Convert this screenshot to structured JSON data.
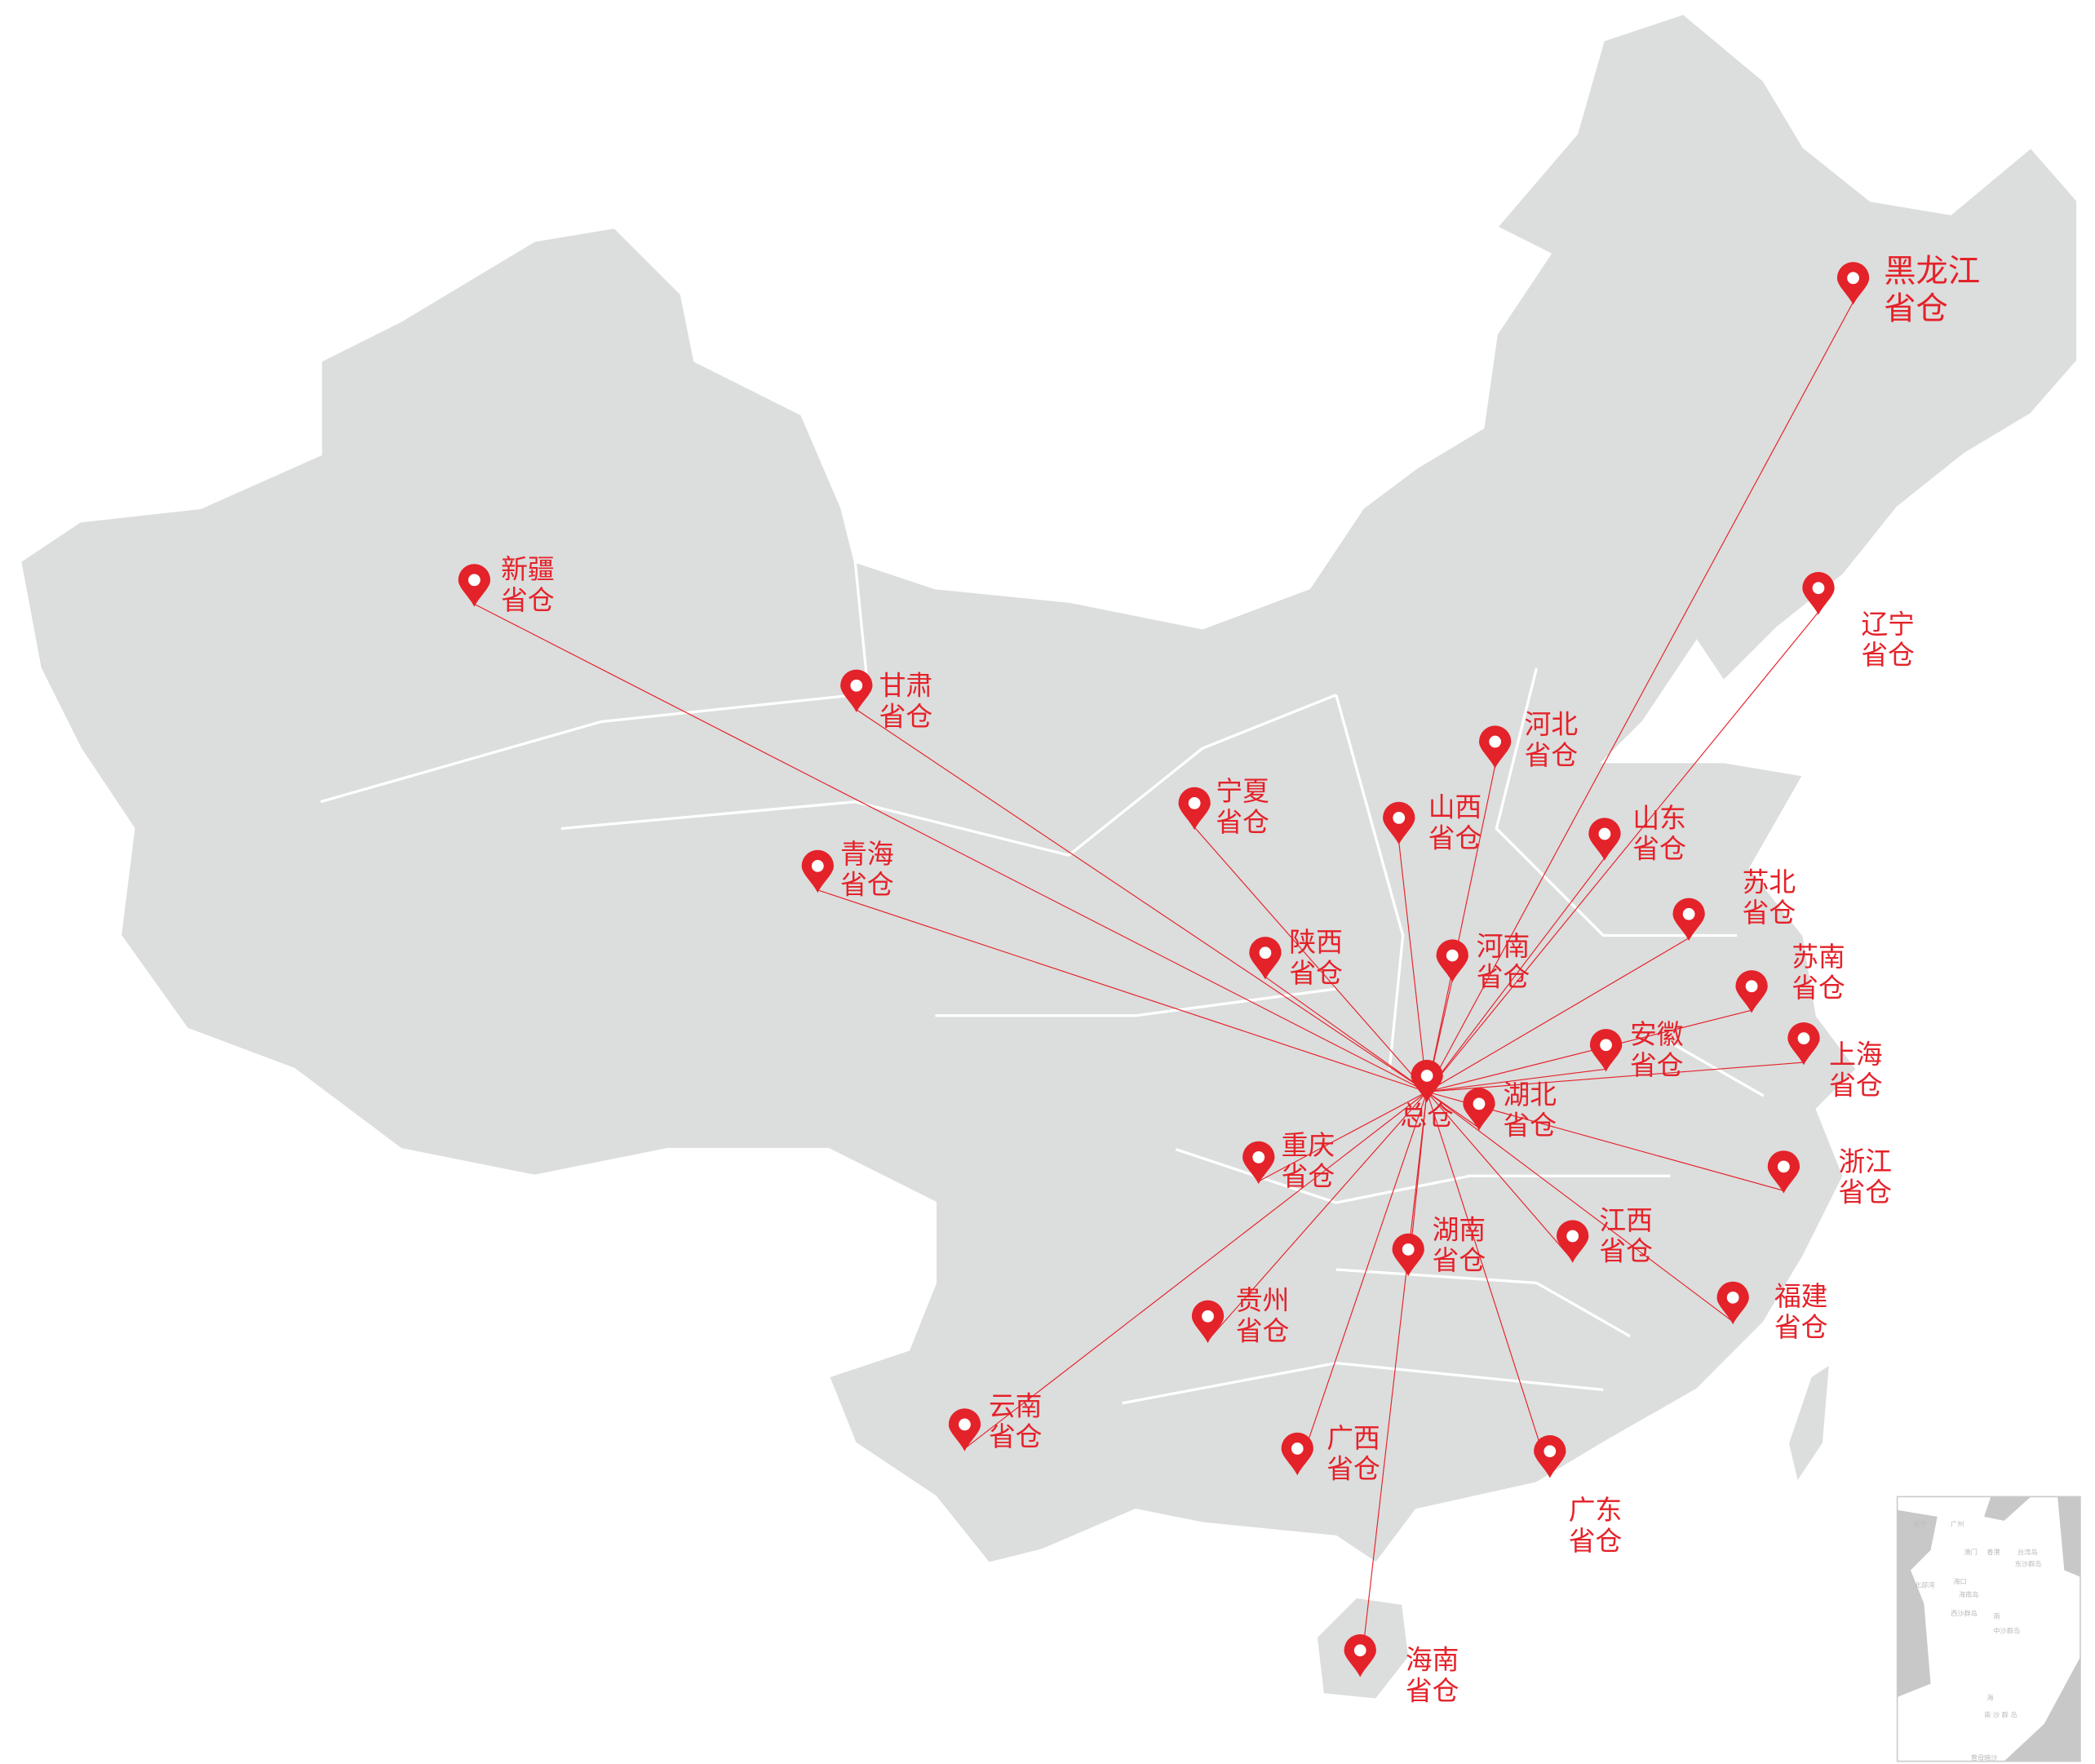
{
  "accent_color": "#e42229",
  "land_color": "#dcdddd",
  "hub": {
    "name": "总仓",
    "icon": "map-pin-icon"
  },
  "warehouses": [
    {
      "province": "黑龙江",
      "suffix": "省仓"
    },
    {
      "province": "辽宁",
      "suffix": "省仓"
    },
    {
      "province": "新疆",
      "suffix": "省仓"
    },
    {
      "province": "甘肃",
      "suffix": "省仓"
    },
    {
      "province": "宁夏",
      "suffix": "省仓"
    },
    {
      "province": "青海",
      "suffix": "省仓"
    },
    {
      "province": "河北",
      "suffix": "省仓"
    },
    {
      "province": "山西",
      "suffix": "省仓"
    },
    {
      "province": "山东",
      "suffix": "省仓"
    },
    {
      "province": "苏北",
      "suffix": "省仓"
    },
    {
      "province": "陕西",
      "suffix": "省仓"
    },
    {
      "province": "河南",
      "suffix": "省仓"
    },
    {
      "province": "苏南",
      "suffix": "省仓"
    },
    {
      "province": "安徽",
      "suffix": "省仓"
    },
    {
      "province": "上海",
      "suffix": "省仓"
    },
    {
      "province": "湖北",
      "suffix": "省仓"
    },
    {
      "province": "重庆",
      "suffix": "省仓"
    },
    {
      "province": "浙江",
      "suffix": "省仓"
    },
    {
      "province": "江西",
      "suffix": "省仓"
    },
    {
      "province": "湖南",
      "suffix": "省仓"
    },
    {
      "province": "贵州",
      "suffix": "省仓"
    },
    {
      "province": "福建",
      "suffix": "省仓"
    },
    {
      "province": "云南",
      "suffix": "省仓"
    },
    {
      "province": "广西",
      "suffix": "省仓"
    },
    {
      "province": "广东",
      "suffix": "省仓"
    },
    {
      "province": "海南",
      "suffix": "省仓"
    }
  ],
  "inset": {
    "labels": [
      "南宁",
      "广州",
      "澳门",
      "香港",
      "台湾岛",
      "东沙群岛",
      "北部湾",
      "海口",
      "海南岛",
      "西沙群岛",
      "南",
      "中沙群岛",
      "海",
      "南 沙 群 岛",
      "曾母暗沙"
    ]
  }
}
